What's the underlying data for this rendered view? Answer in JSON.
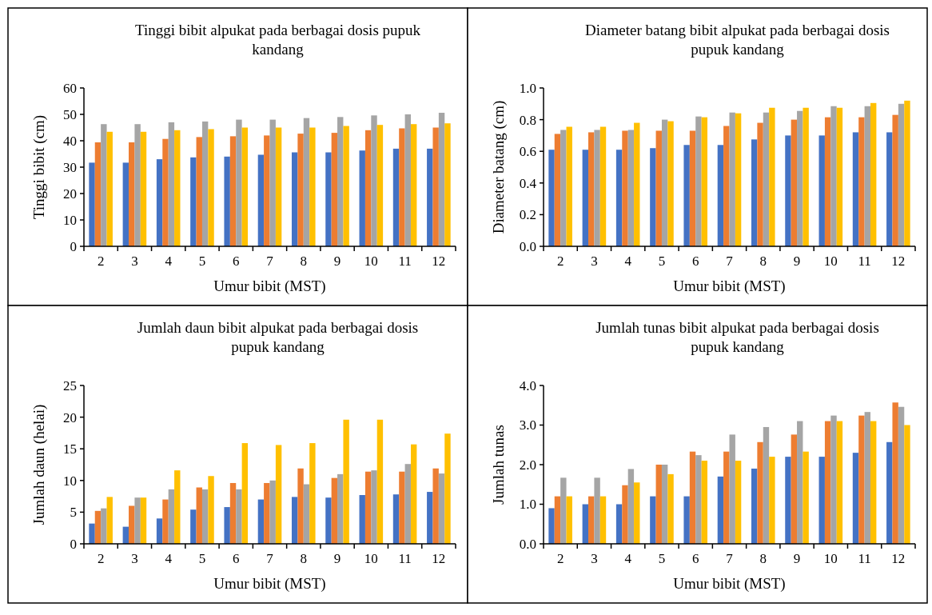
{
  "chart_data": [
    {
      "type": "bar",
      "title": "Tinggi bibit alpukat pada berbagai dosis pupuk kandang",
      "xlabel": "Umur bibit (MST)",
      "ylabel": "Tinggi bibit (cm)",
      "categories": [
        "2",
        "3",
        "4",
        "5",
        "6",
        "7",
        "8",
        "9",
        "10",
        "11",
        "12"
      ],
      "ylim": [
        0,
        60
      ],
      "yticks": [
        0,
        10,
        20,
        30,
        40,
        50,
        60
      ],
      "grid": false,
      "series": [
        {
          "color": "#4472c4",
          "values": [
            31.7,
            31.7,
            33,
            33.7,
            34,
            34.7,
            35.6,
            35.6,
            36.3,
            37,
            37
          ]
        },
        {
          "color": "#ed7d31",
          "values": [
            39.4,
            39.4,
            40.7,
            41.4,
            41.7,
            42,
            42.7,
            43,
            44,
            44.7,
            45
          ]
        },
        {
          "color": "#a5a5a5",
          "values": [
            46.3,
            46.3,
            47,
            47.3,
            48,
            48,
            48.6,
            49,
            49.6,
            50,
            50.6
          ]
        },
        {
          "color": "#ffc000",
          "values": [
            43.4,
            43.4,
            44,
            44.4,
            45,
            45,
            45,
            45.6,
            46,
            46.3,
            46.6
          ]
        }
      ]
    },
    {
      "type": "bar",
      "title": "Diameter batang bibit alpukat pada berbagai dosis pupuk kandang",
      "xlabel": "Umur bibit (MST)",
      "ylabel": "Diameter batang (cm)",
      "categories": [
        "2",
        "3",
        "4",
        "5",
        "6",
        "7",
        "8",
        "9",
        "10",
        "11",
        "12"
      ],
      "ylim": [
        0,
        1
      ],
      "yticks": [
        {
          "value": 0,
          "label": "0.0"
        },
        0.2,
        0.4,
        0.6,
        0.8,
        {
          "value": 1,
          "label": "1.0"
        }
      ],
      "grid": false,
      "series": [
        {
          "color": "#4472c4",
          "values": [
            0.61,
            0.61,
            0.61,
            0.62,
            0.64,
            0.64,
            0.675,
            0.7,
            0.7,
            0.72,
            0.72
          ]
        },
        {
          "color": "#ed7d31",
          "values": [
            0.71,
            0.72,
            0.73,
            0.73,
            0.73,
            0.76,
            0.78,
            0.8,
            0.815,
            0.815,
            0.83
          ]
        },
        {
          "color": "#a5a5a5",
          "values": [
            0.735,
            0.735,
            0.735,
            0.8,
            0.82,
            0.845,
            0.845,
            0.855,
            0.885,
            0.885,
            0.9
          ]
        },
        {
          "color": "#ffc000",
          "values": [
            0.755,
            0.755,
            0.78,
            0.79,
            0.815,
            0.84,
            0.875,
            0.875,
            0.875,
            0.905,
            0.92
          ]
        }
      ]
    },
    {
      "type": "bar",
      "title": "Jumlah daun bibit alpukat pada berbagai dosis pupuk kandang",
      "xlabel": "Umur bibit (MST)",
      "ylabel": "Jumlah daun (helai)",
      "categories": [
        "2",
        "3",
        "4",
        "5",
        "6",
        "7",
        "8",
        "9",
        "10",
        "11",
        "12"
      ],
      "ylim": [
        0,
        25
      ],
      "yticks": [
        0,
        5,
        10,
        15,
        20,
        25
      ],
      "grid": false,
      "series": [
        {
          "color": "#4472c4",
          "values": [
            3.2,
            2.7,
            4,
            5.4,
            5.8,
            7,
            7.4,
            7.3,
            7.7,
            7.8,
            8.2
          ]
        },
        {
          "color": "#ed7d31",
          "values": [
            5.2,
            6,
            7,
            8.9,
            9.6,
            9.6,
            11.9,
            10.4,
            11.4,
            11.4,
            11.9
          ]
        },
        {
          "color": "#a5a5a5",
          "values": [
            5.6,
            7.3,
            8.6,
            8.6,
            8.6,
            10,
            9.4,
            11,
            11.6,
            12.6,
            11.1
          ]
        },
        {
          "color": "#ffc000",
          "values": [
            7.4,
            7.3,
            11.6,
            10.7,
            15.9,
            15.6,
            15.9,
            19.6,
            19.6,
            15.7,
            17.4
          ]
        }
      ]
    },
    {
      "type": "bar",
      "title": "Jumlah tunas bibit alpukat pada berbagai dosis pupuk kandang",
      "xlabel": "Umur bibit (MST)",
      "ylabel": "Jumlah tunas",
      "categories": [
        "2",
        "3",
        "4",
        "5",
        "6",
        "7",
        "8",
        "9",
        "10",
        "11",
        "12"
      ],
      "ylim": [
        0,
        4
      ],
      "yticks": [
        {
          "value": 0,
          "label": "0.0"
        },
        {
          "value": 1,
          "label": "1.0"
        },
        {
          "value": 2,
          "label": "2.0"
        },
        {
          "value": 3,
          "label": "3.0"
        },
        {
          "value": 4,
          "label": "4.0"
        }
      ],
      "grid": false,
      "series": [
        {
          "color": "#4472c4",
          "values": [
            0.9,
            1,
            1,
            1.2,
            1.2,
            1.7,
            1.9,
            2.2,
            2.2,
            2.3,
            2.57
          ]
        },
        {
          "color": "#ed7d31",
          "values": [
            1.2,
            1.2,
            1.48,
            2,
            2.33,
            2.33,
            2.57,
            2.76,
            3.1,
            3.24,
            3.57
          ]
        },
        {
          "color": "#a5a5a5",
          "values": [
            1.67,
            1.67,
            1.89,
            2,
            2.24,
            2.76,
            2.95,
            3.1,
            3.24,
            3.33,
            3.46
          ]
        },
        {
          "color": "#ffc000",
          "values": [
            1.2,
            1.2,
            1.55,
            1.76,
            2.1,
            2.1,
            2.2,
            2.33,
            3.1,
            3.1,
            3
          ]
        }
      ]
    }
  ]
}
